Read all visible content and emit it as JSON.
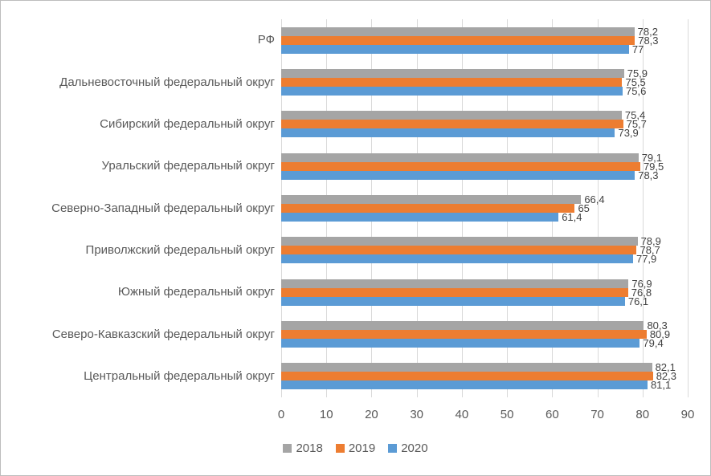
{
  "figure": {
    "background": "#FFFFFF",
    "border_color": "#BDBDBD"
  },
  "chart_data": {
    "type": "bar",
    "orientation": "horizontal",
    "title": "",
    "xlabel": "",
    "ylabel": "",
    "xlim": [
      0,
      90
    ],
    "x_ticks": [
      "0",
      "10",
      "20",
      "30",
      "40",
      "50",
      "60",
      "70",
      "80",
      "90"
    ],
    "grid": true,
    "gridline_color": "#D9D9D9",
    "legend_position": "bottom",
    "axis_text_color": "#595959",
    "data_label_color": "#404040",
    "categories": [
      "РФ",
      "Дальневосточный федеральный округ",
      "Сибирский федеральный округ",
      "Уральский федеральный округ",
      "Северно-Западный федеральный округ",
      "Приволжский федеральный округ",
      "Южный федеральный округ",
      "Северо-Кавказский федеральный округ",
      "Центральный федеральный округ"
    ],
    "series": [
      {
        "name": "2018",
        "color": "#A5A5A5",
        "values": [
          78.2,
          75.9,
          75.4,
          79.1,
          66.4,
          78.9,
          76.9,
          80.3,
          82.1
        ],
        "labels": [
          "78,2",
          "75,9",
          "75,4",
          "79,1",
          "66,4",
          "78,9",
          "76,9",
          "80,3",
          "82,1"
        ]
      },
      {
        "name": "2019",
        "color": "#ED7D31",
        "values": [
          78.3,
          75.5,
          75.7,
          79.5,
          65,
          78.7,
          76.8,
          80.9,
          82.3
        ],
        "labels": [
          "78,3",
          "75,5",
          "75,7",
          "79,5",
          "65",
          "78,7",
          "76,8",
          "80,9",
          "82,3"
        ]
      },
      {
        "name": "2020",
        "color": "#5B9BD5",
        "values": [
          77,
          75.6,
          73.9,
          78.3,
          61.4,
          77.9,
          76.1,
          79.4,
          81.1
        ],
        "labels": [
          "77",
          "75,6",
          "73,9",
          "78,3",
          "61,4",
          "77,9",
          "76,1",
          "79,4",
          "81,1"
        ]
      }
    ]
  }
}
